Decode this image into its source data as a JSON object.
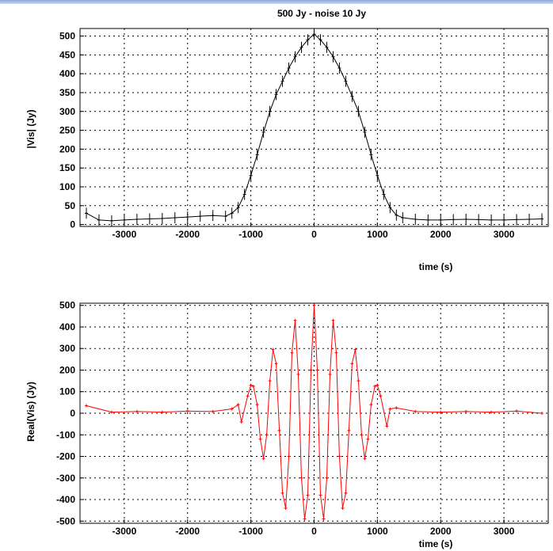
{
  "title": "500 Jy - noise 10 Jy",
  "chart_data": [
    {
      "type": "scatter",
      "style": "error-bars",
      "color": "#000000",
      "ylabel": "|Vis| (Jy)",
      "xlabel": "time (s)",
      "xlim": [
        -3700,
        3700
      ],
      "ylim": [
        -5,
        520
      ],
      "xticks": [
        "-3000",
        "-2000",
        "-1000",
        "0",
        "1000",
        "2000",
        "3000"
      ],
      "yticks": [
        "0",
        "50",
        "100",
        "150",
        "200",
        "250",
        "300",
        "350",
        "400",
        "450",
        "500"
      ],
      "grid": true,
      "series": [
        {
          "x": [
            -3600,
            -3400,
            -3200,
            -3000,
            -2800,
            -2600,
            -2400,
            -2200,
            -2000,
            -1800,
            -1600,
            -1400,
            -1300,
            -1200,
            -1100,
            -1000,
            -900,
            -800,
            -700,
            -600,
            -500,
            -400,
            -300,
            -200,
            -100,
            0,
            100,
            200,
            300,
            400,
            500,
            600,
            700,
            800,
            900,
            1000,
            1100,
            1200,
            1300,
            1400,
            1600,
            1800,
            2000,
            2200,
            2400,
            2600,
            2800,
            3000,
            3200,
            3400,
            3600
          ],
          "y": [
            30,
            12,
            10,
            12,
            14,
            15,
            16,
            18,
            20,
            22,
            24,
            22,
            30,
            45,
            80,
            130,
            185,
            245,
            300,
            345,
            380,
            415,
            445,
            470,
            490,
            505,
            490,
            470,
            445,
            415,
            380,
            340,
            300,
            245,
            185,
            130,
            80,
            45,
            25,
            18,
            14,
            12,
            12,
            13,
            14,
            13,
            12,
            12,
            13,
            14,
            15
          ]
        }
      ]
    },
    {
      "type": "line",
      "style": "line-with-markers",
      "color": "#ff0000",
      "ylabel": "Real(Vis) (Jy)",
      "xlabel": "time (s)",
      "xlim": [
        -3700,
        3700
      ],
      "ylim": [
        -510,
        510
      ],
      "xticks": [
        "-3000",
        "-2000",
        "-1000",
        "0",
        "1000",
        "2000",
        "3000"
      ],
      "yticks": [
        "-500",
        "-400",
        "-300",
        "-200",
        "-100",
        "0",
        "100",
        "200",
        "300",
        "400",
        "500"
      ],
      "grid": true,
      "series": [
        {
          "x": [
            -3600,
            -3200,
            -2800,
            -2400,
            -2000,
            -1600,
            -1300,
            -1200,
            -1150,
            -1050,
            -1000,
            -960,
            -900,
            -850,
            -800,
            -750,
            -700,
            -650,
            -600,
            -550,
            -500,
            -450,
            -400,
            -350,
            -300,
            -250,
            -200,
            -150,
            -100,
            -50,
            0,
            50,
            100,
            150,
            200,
            250,
            300,
            350,
            400,
            450,
            500,
            550,
            600,
            650,
            700,
            750,
            800,
            850,
            900,
            960,
            1000,
            1050,
            1150,
            1200,
            1300,
            1600,
            2000,
            2400,
            2800,
            3200,
            3600
          ],
          "y": [
            35,
            5,
            8,
            5,
            10,
            8,
            20,
            40,
            -40,
            80,
            130,
            125,
            40,
            -120,
            -210,
            -100,
            150,
            295,
            230,
            -80,
            -370,
            -440,
            -200,
            280,
            430,
            180,
            -300,
            -490,
            -380,
            200,
            500,
            200,
            -380,
            -490,
            -300,
            180,
            430,
            280,
            -200,
            -440,
            -370,
            -80,
            230,
            295,
            150,
            -100,
            -210,
            -120,
            40,
            125,
            130,
            80,
            -60,
            20,
            25,
            8,
            5,
            8,
            5,
            10,
            0
          ]
        }
      ]
    }
  ]
}
